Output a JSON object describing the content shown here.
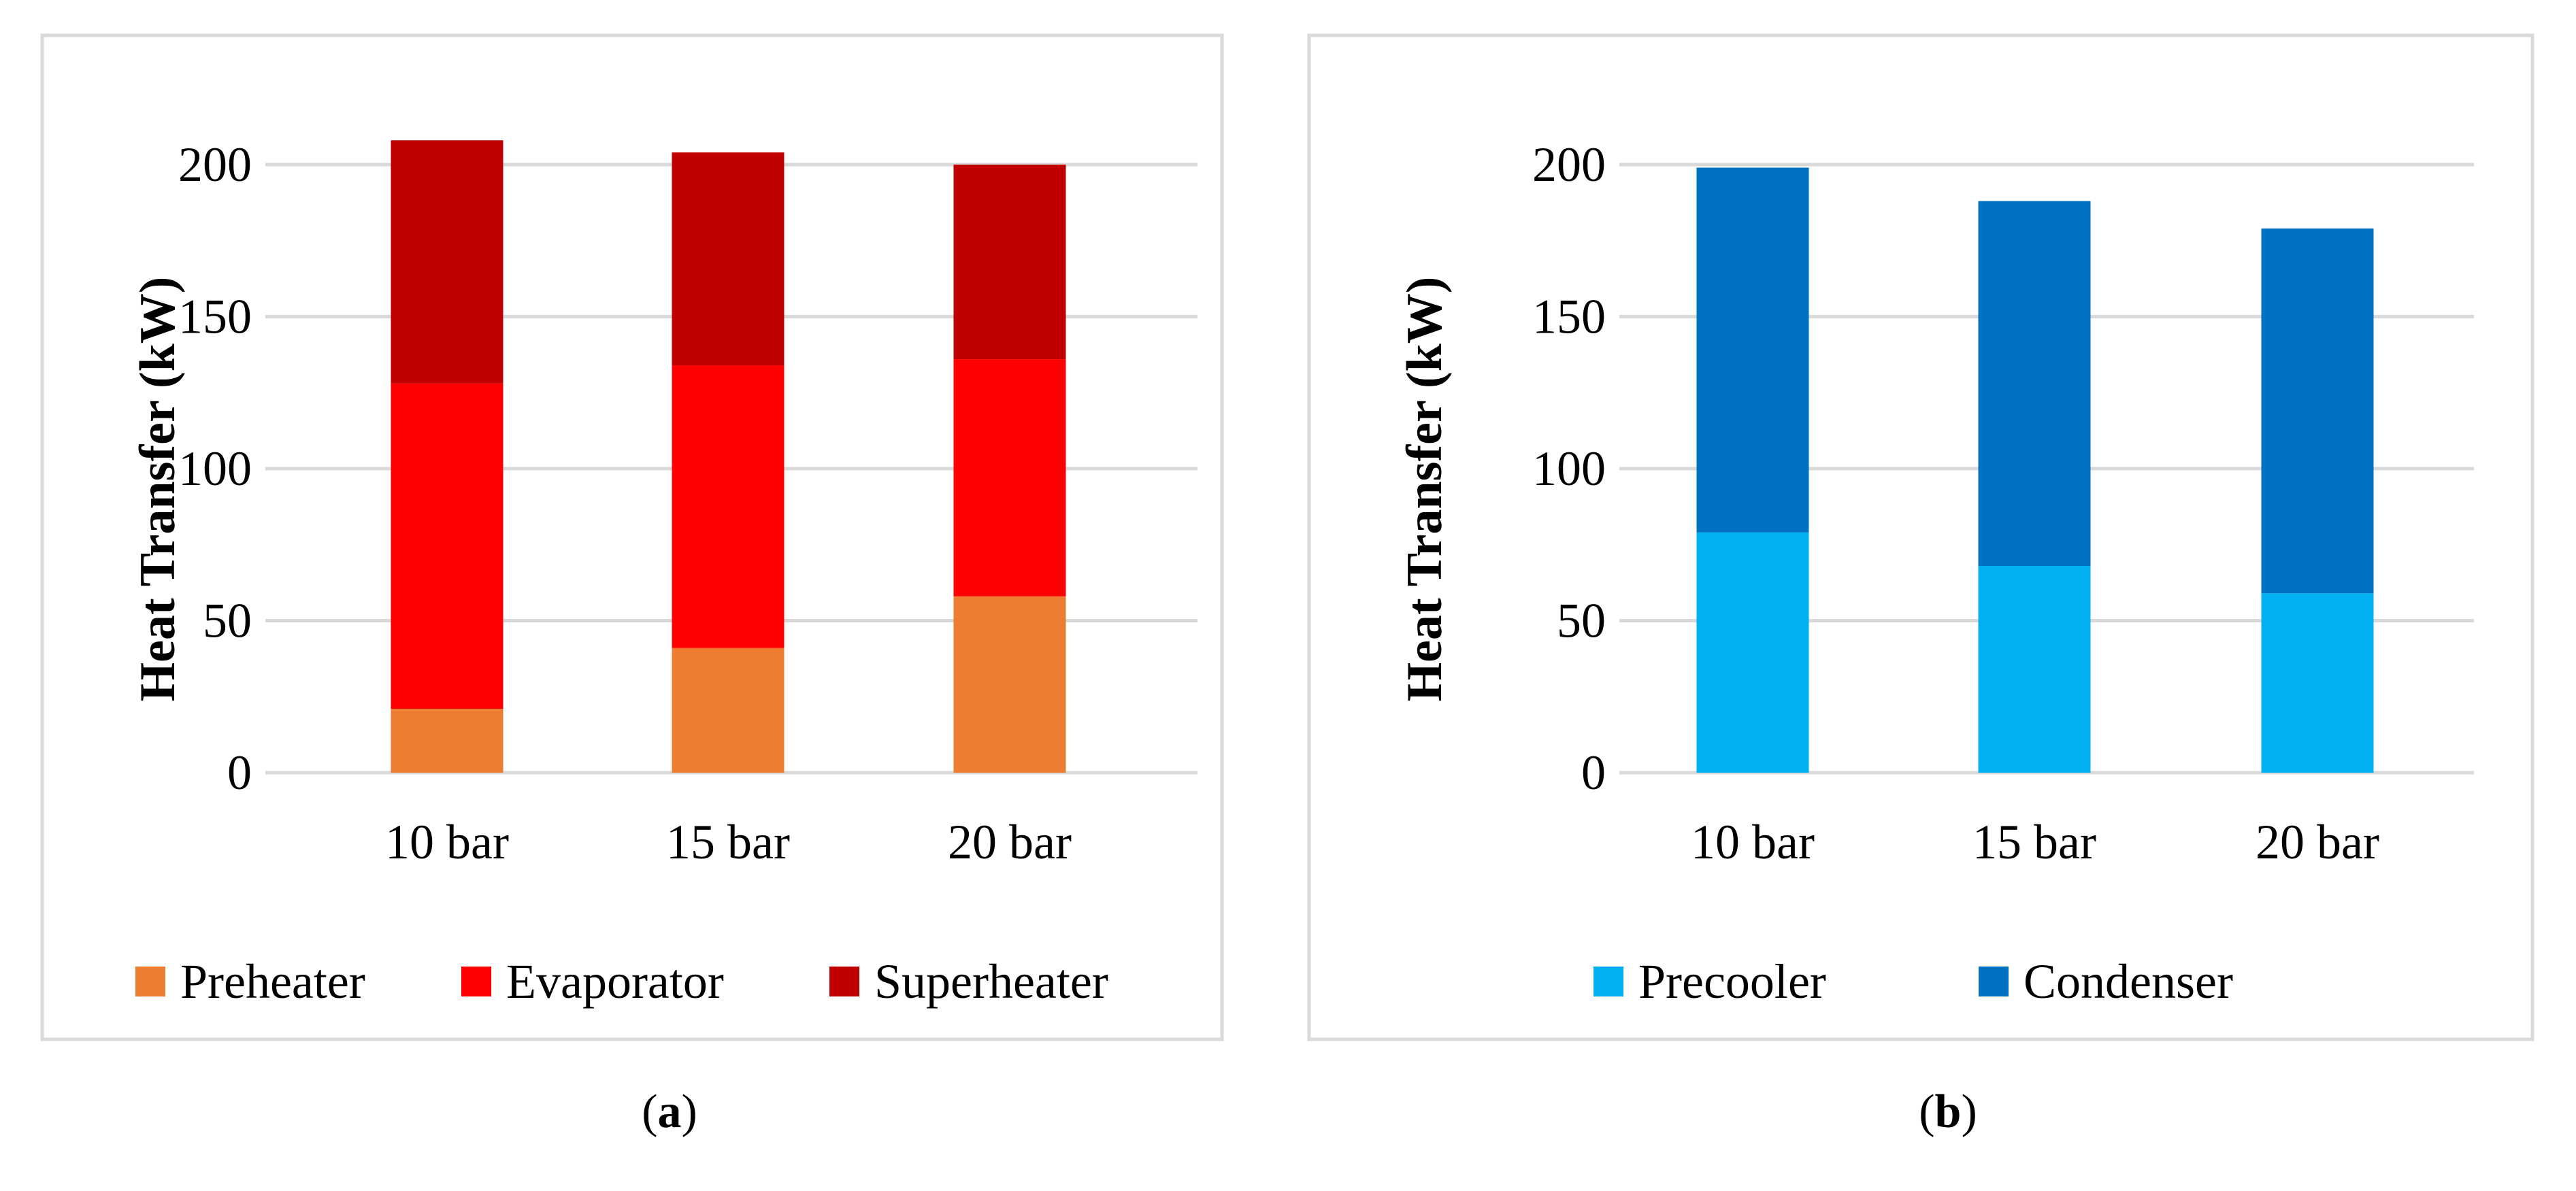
{
  "chart_data": [
    {
      "type": "bar",
      "stacked": true,
      "panel_label": "a",
      "categories": [
        "10 bar",
        "15 bar",
        "20 bar"
      ],
      "series": [
        {
          "name": "Preheater",
          "color": "#ED7D31",
          "values": [
            21,
            41,
            58
          ]
        },
        {
          "name": "Evaporator",
          "color": "#FF0000",
          "values": [
            107,
            93,
            78
          ]
        },
        {
          "name": "Superheater",
          "color": "#C00000",
          "values": [
            80,
            70,
            64
          ]
        }
      ],
      "ylabel": "Heat Transfer (kW)",
      "xlabel": "",
      "ylim": [
        0,
        200
      ],
      "yticks": [
        "0",
        "50",
        "100",
        "150",
        "200"
      ],
      "grid": true,
      "legend_position": "bottom"
    },
    {
      "type": "bar",
      "stacked": true,
      "panel_label": "b",
      "categories": [
        "10 bar",
        "15 bar",
        "20 bar"
      ],
      "series": [
        {
          "name": "Precooler",
          "color": "#00B0F0",
          "values": [
            79,
            68,
            59
          ]
        },
        {
          "name": "Condenser",
          "color": "#0070C0",
          "values": [
            120,
            120,
            120
          ]
        }
      ],
      "ylabel": "Heat Transfer (kW)",
      "xlabel": "",
      "ylim": [
        0,
        200
      ],
      "yticks": [
        "0",
        "50",
        "100",
        "150",
        "200"
      ],
      "grid": true,
      "legend_position": "bottom"
    }
  ],
  "captions": [
    {
      "open": "(",
      "label": "a",
      "close": ")"
    },
    {
      "open": "(",
      "label": "b",
      "close": ")"
    }
  ]
}
